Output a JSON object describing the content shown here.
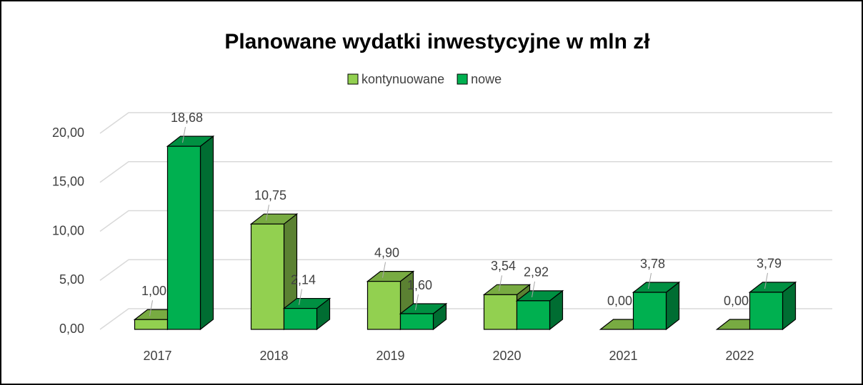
{
  "chart_data": {
    "type": "bar3d",
    "title": "Planowane wydatki inwestycyjne w mln zł",
    "categories": [
      "2017",
      "2018",
      "2019",
      "2020",
      "2021",
      "2022"
    ],
    "series": [
      {
        "name": "kontynuowane",
        "color": "#92d050",
        "values": [
          1.0,
          10.75,
          4.9,
          3.54,
          0.0,
          0.0
        ],
        "value_labels": [
          "1,00",
          "10,75",
          "4,90",
          "3,54",
          "0,00",
          "0,00"
        ]
      },
      {
        "name": "nowe",
        "color": "#00b050",
        "values": [
          18.68,
          2.14,
          1.6,
          2.92,
          3.78,
          3.79
        ],
        "value_labels": [
          "18,68",
          "2,14",
          "1,60",
          "2,92",
          "3,78",
          "3,79"
        ]
      }
    ],
    "ylim": [
      0,
      20
    ],
    "yticks": [
      {
        "value": 0,
        "label": "0,00"
      },
      {
        "value": 5,
        "label": "5,00"
      },
      {
        "value": 10,
        "label": "10,00"
      },
      {
        "value": 15,
        "label": "15,00"
      },
      {
        "value": 20,
        "label": "20,00"
      }
    ],
    "grid": true,
    "legend": "top"
  }
}
